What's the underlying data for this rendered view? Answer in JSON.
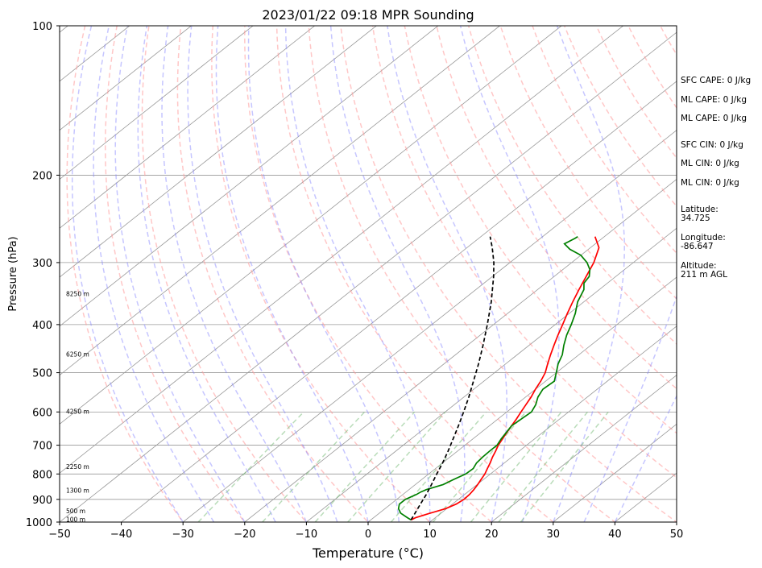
{
  "chart_data": {
    "type": "line",
    "title": "2023/01/22 09:18 MPR Sounding",
    "xlabel": "Temperature (°C)",
    "ylabel": "Pressure (hPa)",
    "xlim": [
      -50,
      50
    ],
    "ylim": [
      1000,
      100
    ],
    "yscale": "log",
    "grid": true,
    "x_ticks": [
      -50,
      -40,
      -30,
      -20,
      -10,
      0,
      10,
      20,
      30,
      40,
      50
    ],
    "y_ticks": [
      1000,
      900,
      800,
      700,
      600,
      500,
      400,
      300,
      200,
      100
    ],
    "colors": {
      "temperature": "#ff0000",
      "dewpoint": "#008000",
      "parcel": "#000000",
      "dry_adiabats": "#ff9999",
      "moist_adiabats": "#8080ff",
      "mixing_ratio": "#80c080",
      "isotherms": "#999999"
    },
    "height_labels": [
      {
        "text": "100 m",
        "pressure": 990
      },
      {
        "text": "500 m",
        "pressure": 952
      },
      {
        "text": "1300 m",
        "pressure": 866
      },
      {
        "text": "2250 m",
        "pressure": 776
      },
      {
        "text": "4250 m",
        "pressure": 600
      },
      {
        "text": "6250 m",
        "pressure": 460
      },
      {
        "text": "8250 m",
        "pressure": 348
      }
    ],
    "series": [
      {
        "role": "temperature",
        "pressure": [
          990,
          980,
          960,
          940,
          920,
          900,
          880,
          860,
          840,
          820,
          800,
          780,
          760,
          740,
          720,
          700,
          680,
          660,
          640,
          620,
          600,
          580,
          560,
          540,
          520,
          500,
          480,
          460,
          440,
          420,
          400,
          380,
          360,
          340,
          320,
          300,
          280,
          266
        ],
        "values": [
          6.5,
          6.8,
          8.2,
          9.8,
          10.6,
          10.9,
          10.8,
          10.5,
          10.1,
          9.6,
          9.1,
          8.4,
          7.7,
          6.9,
          6.2,
          5.4,
          4.8,
          4.2,
          3.6,
          3.0,
          2.3,
          1.6,
          0.9,
          0.0,
          -0.8,
          -1.8,
          -3.2,
          -4.6,
          -6.0,
          -7.4,
          -8.8,
          -10.3,
          -11.8,
          -13.3,
          -14.8,
          -16.4,
          -18.6,
          -21.5
        ]
      },
      {
        "role": "dewpoint",
        "pressure": [
          990,
          980,
          960,
          940,
          920,
          900,
          880,
          870,
          860,
          840,
          820,
          800,
          780,
          760,
          740,
          720,
          700,
          680,
          660,
          640,
          620,
          600,
          580,
          560,
          540,
          520,
          500,
          480,
          460,
          440,
          420,
          400,
          380,
          360,
          340,
          330,
          320,
          310,
          300,
          290,
          282,
          275,
          268,
          266
        ],
        "values": [
          6.5,
          5.5,
          3.5,
          2.2,
          1.4,
          1.4,
          2.2,
          2.4,
          2.8,
          4.5,
          5.2,
          6.0,
          6.1,
          5.5,
          5.3,
          5.2,
          5.2,
          4.6,
          4.1,
          3.6,
          3.8,
          4.0,
          3.2,
          2.0,
          1.2,
          1.4,
          0.0,
          -1.5,
          -2.7,
          -4.4,
          -6.0,
          -7.4,
          -9.0,
          -11.0,
          -12.5,
          -13.8,
          -14.3,
          -15.6,
          -17.5,
          -20.0,
          -23.0,
          -25.0,
          -24.4,
          -24.3
        ]
      },
      {
        "role": "parcel",
        "pressure": [
          990,
          960,
          920,
          880,
          840,
          800,
          760,
          720,
          680,
          640,
          600,
          560,
          520,
          480,
          440,
          400,
          360,
          320,
          300,
          280,
          266
        ],
        "values": [
          6.5,
          5.8,
          4.8,
          3.8,
          2.6,
          1.3,
          0.0,
          -1.5,
          -3.2,
          -5.0,
          -7.0,
          -9.2,
          -11.7,
          -14.4,
          -17.5,
          -21.0,
          -25.0,
          -29.8,
          -32.6,
          -35.9,
          -38.5
        ]
      }
    ]
  },
  "indices": {
    "sfc_cape": "SFC CAPE: 0 J/kg",
    "ml_cape_1": "ML CAPE: 0 J/kg",
    "ml_cape_2": "ML CAPE: 0 J/kg",
    "sfc_cin": "SFC CIN: 0 J/kg",
    "ml_cin_1": "ML CIN: 0 J/kg",
    "ml_cin_2": "ML CIN: 0 J/kg"
  },
  "location": {
    "latitude_label": "Latitude:",
    "latitude_value": "34.725",
    "longitude_label": "Longitude:",
    "longitude_value": "-86.647",
    "altitude_label": "Altitude:",
    "altitude_value": "211 m AGL"
  }
}
